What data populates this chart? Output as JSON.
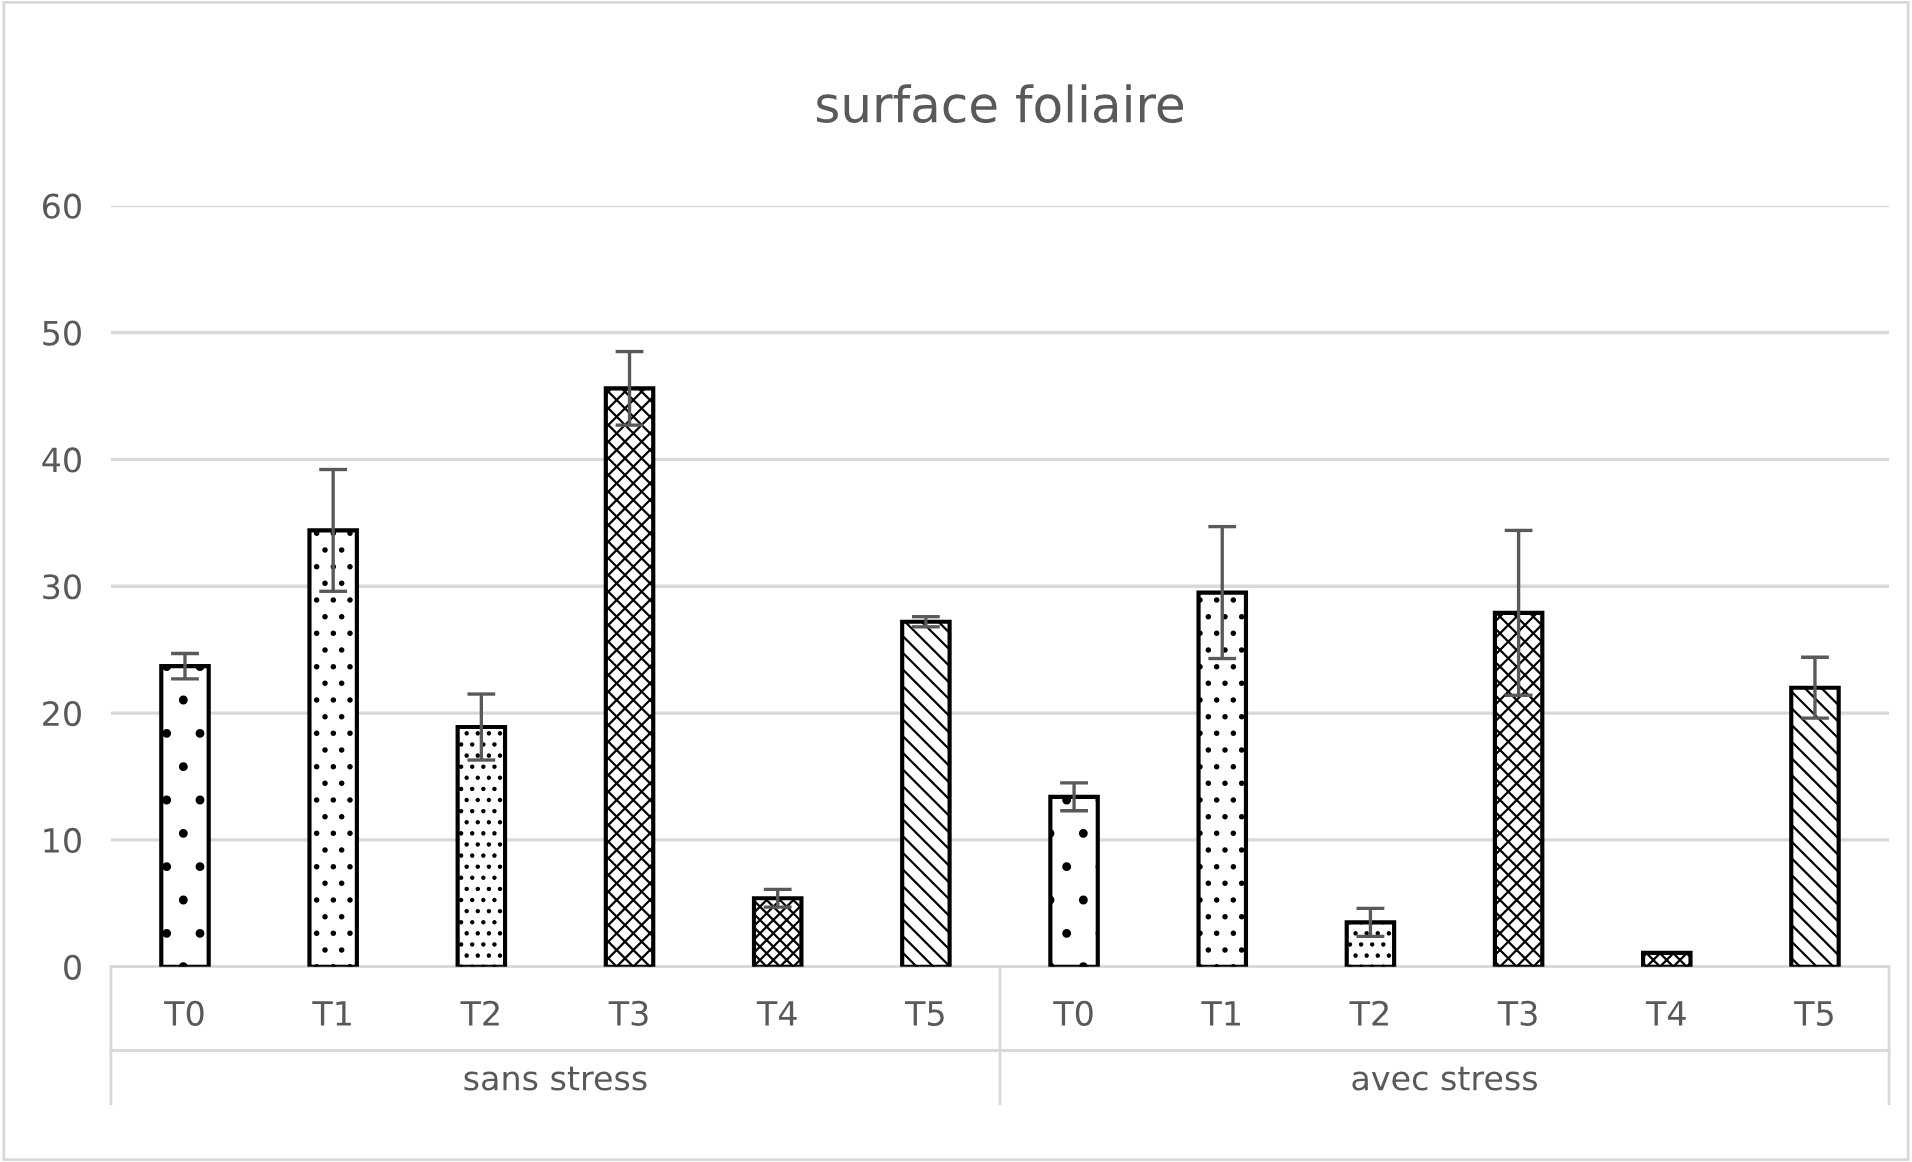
{
  "chart_data": {
    "type": "bar",
    "title": "surface foliaire",
    "categories": [
      "T0",
      "T1",
      "T2",
      "T3",
      "T4",
      "T5",
      "T0",
      "T1",
      "T2",
      "T3",
      "T4",
      "T5"
    ],
    "values": [
      23.7,
      34.4,
      18.9,
      45.6,
      5.4,
      27.2,
      13.4,
      29.5,
      3.5,
      27.9,
      1.1,
      22.0
    ],
    "errors": [
      1.0,
      4.8,
      2.6,
      2.9,
      0.7,
      0.4,
      1.1,
      5.2,
      1.1,
      6.5,
      null,
      2.4
    ],
    "color": "#000000",
    "annotations": [
      "sans stress",
      "avec stress"
    ],
    "ylim": [
      0,
      60
    ],
    "yticks": [
      0,
      10,
      20,
      30,
      40,
      50,
      60
    ],
    "grid": "y",
    "legend": false
  }
}
